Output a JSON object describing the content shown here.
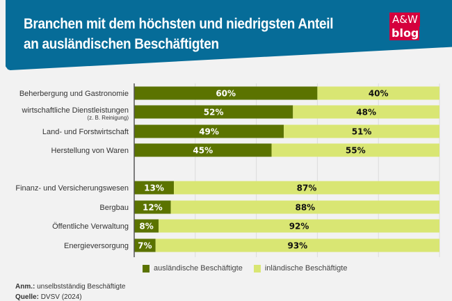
{
  "title": "Branchen mit dem höchsten und niedrigsten Anteil an ausländischen Beschäftigten",
  "logo": {
    "line1": "A&W",
    "line2": "blog",
    "color": "#d5003d"
  },
  "chart_data": {
    "type": "bar",
    "orientation": "horizontal",
    "stacked": true,
    "categories": [
      {
        "label": "Beherbergung und Gastronomie",
        "sublabel": ""
      },
      {
        "label": "wirtschaftliche Dienstleistungen",
        "sublabel": "(z. B. Reinigung)"
      },
      {
        "label": "Land- und Forstwirtschaft",
        "sublabel": ""
      },
      {
        "label": "Herstellung von Waren",
        "sublabel": ""
      },
      {
        "label": "Finanz- und Versicherungswesen",
        "sublabel": ""
      },
      {
        "label": "Bergbau",
        "sublabel": ""
      },
      {
        "label": "Öffentliche Verwaltung",
        "sublabel": ""
      },
      {
        "label": "Energieversorgung",
        "sublabel": ""
      }
    ],
    "series": [
      {
        "name": "ausländische Beschäftigte",
        "color": "#5b7300",
        "values": [
          60,
          52,
          49,
          45,
          13,
          12,
          8,
          7
        ]
      },
      {
        "name": "inländische Beschäftigte",
        "color": "#d9e673",
        "values": [
          40,
          48,
          51,
          55,
          87,
          88,
          92,
          93
        ]
      }
    ],
    "value_suffix": "%",
    "xlim": [
      0,
      100
    ],
    "grid": true,
    "legend": "bottom"
  },
  "notes": {
    "anm_label": "Anm.:",
    "anm_text": "unselbstständig Beschäftigte",
    "source_label": "Quelle:",
    "source_text": "DVSV (2024)"
  }
}
